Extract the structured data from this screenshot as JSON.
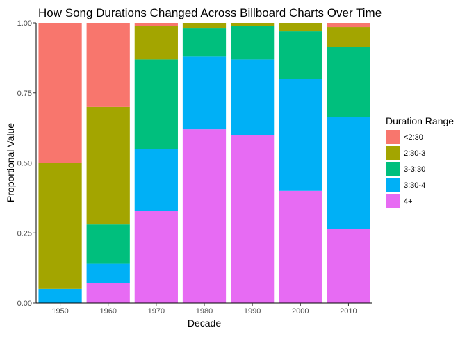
{
  "chart_data": {
    "type": "bar",
    "stacked": true,
    "title": "How Song Durations Changed Across Billboard Charts Over Time",
    "xlabel": "Decade",
    "ylabel": "Proportional Value",
    "ylim": [
      0,
      1
    ],
    "yticks": [
      "0.00",
      "0.25",
      "0.50",
      "0.75",
      "1.00"
    ],
    "categories": [
      "1950",
      "1960",
      "1970",
      "1980",
      "1990",
      "2000",
      "2010"
    ],
    "legend": {
      "title": "Duration Range",
      "position": "right"
    },
    "series": [
      {
        "name": "<2:30",
        "color": "#F8766D",
        "values": [
          0.5,
          0.3,
          0.01,
          0.0,
          0.0,
          0.0,
          0.015
        ]
      },
      {
        "name": "2:30-3",
        "color": "#A3A500",
        "values": [
          0.45,
          0.42,
          0.12,
          0.02,
          0.01,
          0.03,
          0.07
        ]
      },
      {
        "name": "3-3:30",
        "color": "#00BF7D",
        "values": [
          0.0,
          0.14,
          0.32,
          0.1,
          0.12,
          0.17,
          0.25
        ]
      },
      {
        "name": "3:30-4",
        "color": "#00B0F6",
        "values": [
          0.05,
          0.07,
          0.22,
          0.26,
          0.27,
          0.4,
          0.4
        ]
      },
      {
        "name": "4+",
        "color": "#E76BF3",
        "values": [
          0.0,
          0.07,
          0.33,
          0.62,
          0.6,
          0.4,
          0.265
        ]
      }
    ],
    "grid": false
  }
}
